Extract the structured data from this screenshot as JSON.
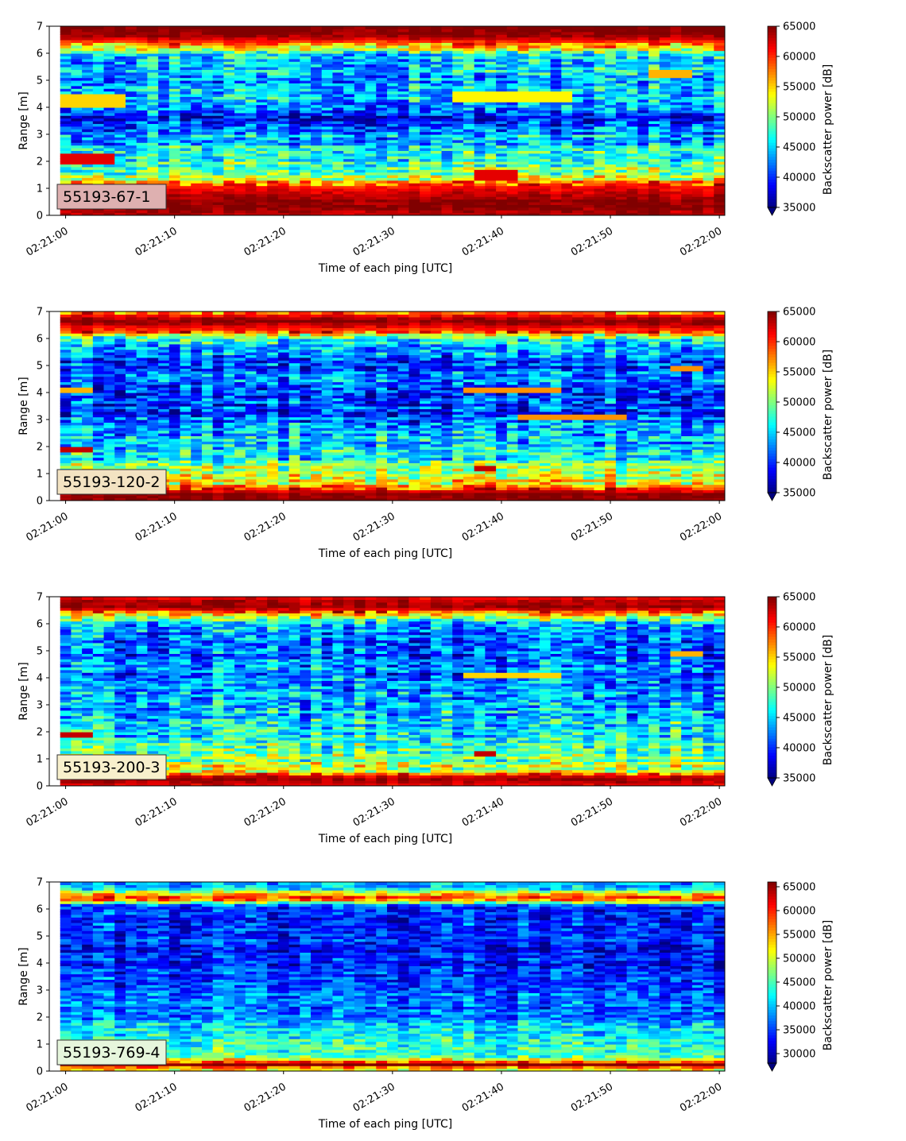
{
  "figure": {
    "panel_labels": [
      "55193-67-1",
      "55193-120-2",
      "55193-200-3",
      "55193-769-4"
    ]
  },
  "chart_data": [
    {
      "type": "heatmap",
      "label": "55193-67-1",
      "label_box_color": "#deb0b0",
      "xlabel": "Time of each ping [UTC]",
      "ylabel": "Range [m]",
      "xticks": [
        "02:21:00",
        "02:21:10",
        "02:21:20",
        "02:21:30",
        "02:21:40",
        "02:21:50",
        "02:22:00"
      ],
      "xlim": [
        "02:20:59",
        "02:22:00"
      ],
      "ylim": [
        0,
        7
      ],
      "yticks": [
        0,
        1,
        2,
        3,
        4,
        5,
        6,
        7
      ],
      "colormap": "jet",
      "colorbar": {
        "label": "Backscatter power [dB]",
        "min": 35000,
        "max": 65000,
        "ticks": [
          35000,
          40000,
          45000,
          50000,
          55000,
          60000,
          65000
        ],
        "extend": "min"
      },
      "profile": {
        "range_m": [
          0.1,
          0.5,
          1.0,
          1.5,
          2.0,
          2.5,
          3.0,
          3.5,
          4.0,
          4.5,
          5.0,
          5.5,
          6.0,
          6.3,
          6.7,
          7.0
        ],
        "backscatter": [
          64000,
          65000,
          62000,
          51000,
          48000,
          46000,
          44000,
          39000,
          42000,
          46000,
          43000,
          46000,
          46000,
          58000,
          65000,
          65000
        ]
      },
      "features": [
        {
          "time_s": [
            0,
            4
          ],
          "range_m": [
            1.9,
            2.3
          ],
          "value": 62000
        },
        {
          "time_s": [
            38,
            41
          ],
          "range_m": [
            1.3,
            1.7
          ],
          "value": 62000
        },
        {
          "time_s": [
            36,
            46
          ],
          "range_m": [
            4.2,
            4.6
          ],
          "value": 54000
        },
        {
          "time_s": [
            0,
            5
          ],
          "range_m": [
            4.0,
            4.5
          ],
          "value": 55000
        },
        {
          "time_s": [
            54,
            57
          ],
          "range_m": [
            5.1,
            5.4
          ],
          "value": 56000
        }
      ]
    },
    {
      "type": "heatmap",
      "label": "55193-120-2",
      "label_box_color": "#f3e3c2",
      "xlabel": "Time of each ping [UTC]",
      "ylabel": "Range [m]",
      "xticks": [
        "02:21:00",
        "02:21:10",
        "02:21:20",
        "02:21:30",
        "02:21:40",
        "02:21:50",
        "02:22:00"
      ],
      "xlim": [
        "02:20:59",
        "02:22:00"
      ],
      "ylim": [
        0,
        7
      ],
      "yticks": [
        0,
        1,
        2,
        3,
        4,
        5,
        6,
        7
      ],
      "colormap": "jet",
      "colorbar": {
        "label": "Backscatter power [dB]",
        "min": 35000,
        "max": 65000,
        "ticks": [
          35000,
          40000,
          45000,
          50000,
          55000,
          60000,
          65000
        ],
        "extend": "min"
      },
      "profile": {
        "range_m": [
          0.1,
          0.3,
          0.6,
          1.0,
          1.5,
          2.0,
          2.5,
          3.0,
          3.5,
          4.0,
          4.5,
          5.0,
          5.5,
          6.0,
          6.3,
          6.7,
          7.0
        ],
        "backscatter": [
          65000,
          64000,
          55000,
          52000,
          47000,
          45000,
          44000,
          42000,
          40000,
          40000,
          42000,
          40000,
          43000,
          47000,
          60000,
          65000,
          58000
        ]
      },
      "features": [
        {
          "time_s": [
            0,
            2
          ],
          "range_m": [
            1.8,
            2.0
          ],
          "value": 63000
        },
        {
          "time_s": [
            38,
            39
          ],
          "range_m": [
            1.1,
            1.3
          ],
          "value": 63000
        },
        {
          "time_s": [
            37,
            45
          ],
          "range_m": [
            4.0,
            4.2
          ],
          "value": 57000
        },
        {
          "time_s": [
            42,
            51
          ],
          "range_m": [
            3.0,
            3.2
          ],
          "value": 57000
        },
        {
          "time_s": [
            0,
            2
          ],
          "range_m": [
            4.0,
            4.2
          ],
          "value": 56000
        },
        {
          "time_s": [
            56,
            58
          ],
          "range_m": [
            4.8,
            5.0
          ],
          "value": 57000
        }
      ]
    },
    {
      "type": "heatmap",
      "label": "55193-200-3",
      "label_box_color": "#f8f0cc",
      "xlabel": "Time of each ping [UTC]",
      "ylabel": "Range [m]",
      "xticks": [
        "02:21:00",
        "02:21:10",
        "02:21:20",
        "02:21:30",
        "02:21:40",
        "02:21:50",
        "02:22:00"
      ],
      "xlim": [
        "02:20:59",
        "02:22:00"
      ],
      "ylim": [
        0,
        7
      ],
      "yticks": [
        0,
        1,
        2,
        3,
        4,
        5,
        6,
        7
      ],
      "colormap": "jet",
      "colorbar": {
        "label": "Backscatter power [dB]",
        "min": 35000,
        "max": 65000,
        "ticks": [
          35000,
          40000,
          45000,
          50000,
          55000,
          60000,
          65000
        ],
        "extend": "min"
      },
      "profile": {
        "range_m": [
          0.1,
          0.3,
          0.6,
          1.0,
          1.5,
          2.0,
          2.5,
          3.0,
          3.5,
          4.0,
          4.5,
          5.0,
          5.5,
          6.0,
          6.3,
          6.6,
          7.0
        ],
        "backscatter": [
          62000,
          65000,
          52000,
          50000,
          48000,
          46000,
          45000,
          44000,
          43000,
          42000,
          42000,
          41000,
          42000,
          44000,
          53000,
          65000,
          62000
        ]
      },
      "features": [
        {
          "time_s": [
            0,
            2
          ],
          "range_m": [
            1.8,
            2.0
          ],
          "value": 63000
        },
        {
          "time_s": [
            38,
            39
          ],
          "range_m": [
            1.1,
            1.3
          ],
          "value": 63000
        },
        {
          "time_s": [
            37,
            45
          ],
          "range_m": [
            4.0,
            4.2
          ],
          "value": 55000
        },
        {
          "time_s": [
            56,
            58
          ],
          "range_m": [
            4.8,
            5.0
          ],
          "value": 56000
        }
      ]
    },
    {
      "type": "heatmap",
      "label": "55193-769-4",
      "label_box_color": "#e6f6dc",
      "xlabel": "Time of each ping [UTC]",
      "ylabel": "Range [m]",
      "xticks": [
        "02:21:00",
        "02:21:10",
        "02:21:20",
        "02:21:30",
        "02:21:40",
        "02:21:50",
        "02:22:00"
      ],
      "xlim": [
        "02:20:59",
        "02:22:00"
      ],
      "ylim": [
        0,
        7
      ],
      "yticks": [
        0,
        1,
        2,
        3,
        4,
        5,
        6,
        7
      ],
      "colormap": "jet",
      "colorbar": {
        "label": "Backscatter power [dB]",
        "min": 28000,
        "max": 66000,
        "ticks": [
          30000,
          35000,
          40000,
          45000,
          50000,
          55000,
          60000,
          65000
        ],
        "extend": "min"
      },
      "profile": {
        "range_m": [
          0.1,
          0.25,
          0.5,
          1.0,
          1.5,
          2.0,
          3.0,
          4.0,
          5.0,
          6.0,
          6.2,
          6.4,
          6.6,
          6.8,
          7.0
        ],
        "backscatter": [
          52000,
          66000,
          46000,
          44000,
          42000,
          38000,
          36000,
          34000,
          34000,
          34000,
          40000,
          62000,
          52000,
          40000,
          40000
        ]
      },
      "features": []
    }
  ]
}
